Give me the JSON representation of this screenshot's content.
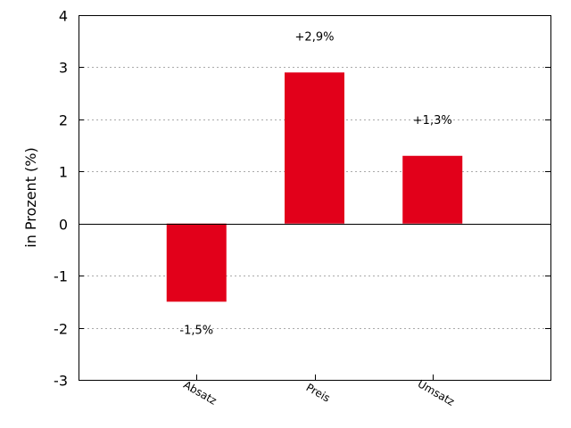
{
  "chart_data": {
    "type": "bar",
    "categories": [
      "Absatz",
      "Preis",
      "Umsatz"
    ],
    "values": [
      -1.5,
      2.9,
      1.3
    ],
    "data_labels": [
      "-1,5%",
      "+2,9%",
      "+1,3%"
    ],
    "title": "",
    "xlabel": "",
    "ylabel": "in Prozent (%)",
    "ylim": [
      -3,
      4
    ],
    "yticks": [
      -3,
      -2,
      -1,
      0,
      1,
      2,
      3,
      4
    ],
    "grid": "horizontal dotted",
    "bar_color": "#e2001a",
    "legend": "none"
  }
}
